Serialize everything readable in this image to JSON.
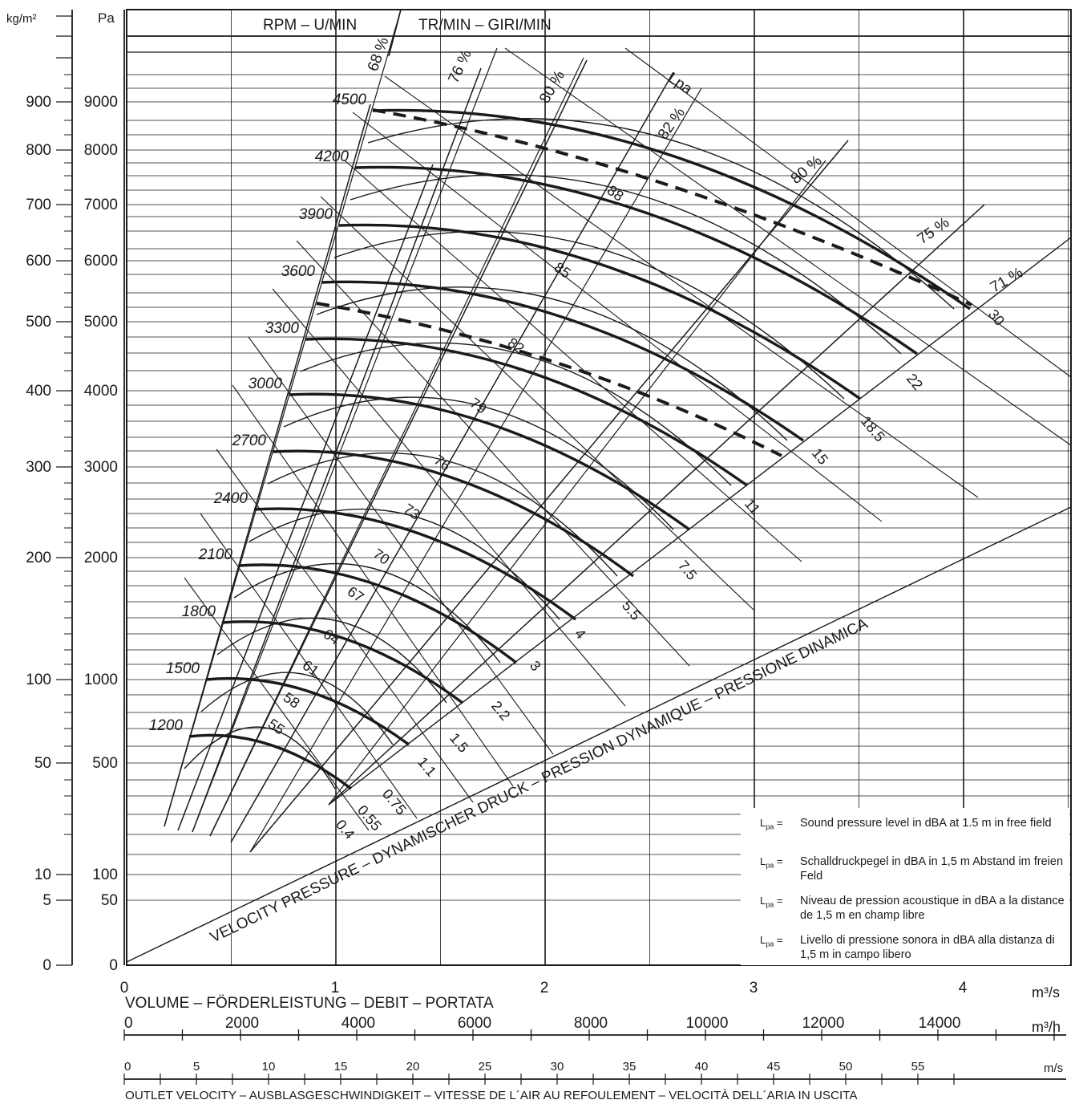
{
  "chart_data": {
    "type": "line",
    "y_units_left": "kg/m²",
    "y_units_right": "Pa",
    "y_ticks_kgm2": [
      "0",
      "5",
      "10",
      "50",
      "100",
      "200",
      "300",
      "400",
      "500",
      "600",
      "700",
      "800",
      "900"
    ],
    "y_ticks_pa": [
      "0",
      "50",
      "100",
      "500",
      "1000",
      "2000",
      "3000",
      "4000",
      "5000",
      "6000",
      "7000",
      "8000",
      "9000"
    ],
    "rpm_header_left": "RPM – U/MIN",
    "rpm_header_right": "TR/MIN – GIRI/MIN",
    "x_ticks_m3s": [
      "0",
      "1",
      "2",
      "3",
      "4"
    ],
    "x_unit_m3s": "m³/s",
    "x_label_volume": "VOLUME – FÖRDERLEISTUNG – DEBIT – PORTATA",
    "x_ticks_m3h": [
      "0",
      "2000",
      "4000",
      "6000",
      "8000",
      "10000",
      "12000",
      "14000"
    ],
    "x_unit_m3h": "m³/h",
    "x_ticks_ms": [
      "0",
      "5",
      "10",
      "15",
      "20",
      "25",
      "30",
      "35",
      "40",
      "45",
      "50",
      "55"
    ],
    "x_unit_ms": "m/s",
    "x_label_velocity": "OUTLET VELOCITY – AUSBLASGESCHWINDIGKEIT – VITESSE DE L´AIR AU REFOULEMENT – VELOCITÀ DELL´ARIA IN USCITA",
    "velocity_pressure_label": "VELOCITY PRESSURE – DYNAMISCHER DRUCK – PRESSION DYNAMIQUE – PRESSIONE DINAMICA",
    "rpm_curves": [
      {
        "rpm": "1200",
        "x": [
          0.3,
          0.6,
          0.9,
          1.09
        ],
        "p": [
          610,
          580,
          510,
          430
        ]
      },
      {
        "rpm": "1500",
        "x": [
          0.38,
          0.76,
          1.14,
          1.37
        ],
        "p": [
          960,
          910,
          800,
          680
        ]
      },
      {
        "rpm": "1800",
        "x": [
          0.46,
          0.91,
          1.37,
          1.64
        ],
        "p": [
          1380,
          1310,
          1150,
          980
        ]
      },
      {
        "rpm": "2100",
        "x": [
          0.53,
          1.06,
          1.6,
          1.91
        ],
        "p": [
          1880,
          1780,
          1570,
          1330
        ]
      },
      {
        "rpm": "2400",
        "x": [
          0.61,
          1.22,
          1.83,
          2.19
        ],
        "p": [
          2450,
          2330,
          2050,
          1740
        ]
      },
      {
        "rpm": "2700",
        "x": [
          0.68,
          1.37,
          2.05,
          2.46
        ],
        "p": [
          3100,
          2950,
          2590,
          2200
        ]
      },
      {
        "rpm": "3000",
        "x": [
          0.76,
          1.52,
          2.28,
          2.73
        ],
        "p": [
          3830,
          3640,
          3200,
          2720
        ]
      },
      {
        "rpm": "3300",
        "x": [
          0.84,
          1.67,
          2.51,
          3.01
        ],
        "p": [
          4640,
          4400,
          3870,
          3290
        ]
      },
      {
        "rpm": "3600",
        "x": [
          0.91,
          1.83,
          2.74,
          3.28
        ],
        "p": [
          5520,
          5240,
          4610,
          3920
        ]
      },
      {
        "rpm": "3900",
        "x": [
          0.99,
          1.98,
          2.97,
          3.56
        ],
        "p": [
          6480,
          6150,
          5410,
          4600
        ]
      },
      {
        "rpm": "4200",
        "x": [
          1.06,
          2.13,
          3.19,
          3.83
        ],
        "p": [
          7510,
          7130,
          6270,
          5330
        ]
      },
      {
        "rpm": "4500",
        "x": [
          1.14,
          2.28,
          3.42,
          4.1
        ],
        "p": [
          8620,
          8190,
          7200,
          6120
        ]
      }
    ],
    "efficiency_lines": [
      "68 %",
      "76 %",
      "80 %",
      "82 %",
      "80 %",
      "75 %",
      "71 %"
    ],
    "motor_power_kw": [
      "0.4",
      "0.55",
      "0.75",
      "1.1",
      "1.5",
      "2.2",
      "3",
      "4",
      "5.5",
      "7.5",
      "11",
      "15",
      "18.5",
      "22",
      "30"
    ],
    "sound_levels_lpa": [
      "55",
      "58",
      "61",
      "64",
      "67",
      "70",
      "73",
      "76",
      "79",
      "82",
      "85",
      "88"
    ],
    "lpa_label": "Lpa",
    "legend": [
      {
        "key": "Lpa =",
        "text": "Sound pressure level in dBA at 1.5 m in free field"
      },
      {
        "key": "Lpa =",
        "text": "Schalldruckpegel in dBA in 1,5 m Abstand im freien Feld"
      },
      {
        "key": "Lpa =",
        "text": "Niveau de pression acoustique in dBA a la distance de 1,5 m en champ libre"
      },
      {
        "key": "Lpa =",
        "text": "Livello di pressione sonora in dBA alla distanza di 1,5 m in campo libero"
      }
    ],
    "grid": true
  },
  "colors": {
    "ink": "#1a1a1a",
    "paper": "#ffffff"
  }
}
